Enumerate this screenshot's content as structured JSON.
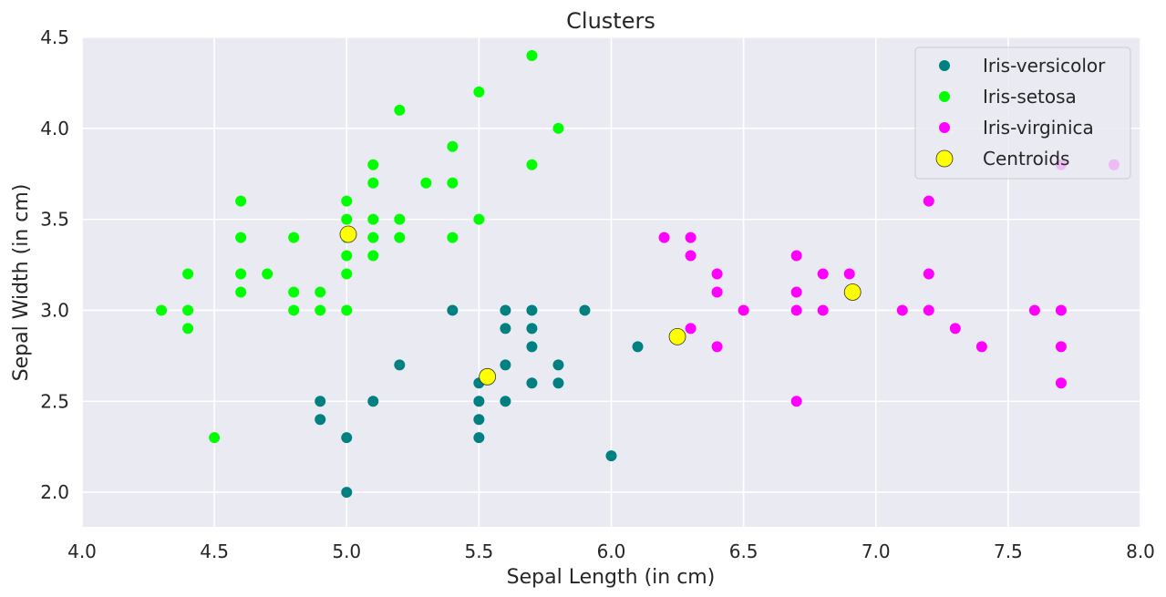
{
  "chart_data": {
    "type": "scatter",
    "title": "Clusters",
    "xlabel": "Sepal Length (in cm)",
    "ylabel": "Sepal Width (in cm)",
    "xlim": [
      4.0,
      8.0
    ],
    "ylim": [
      1.81,
      4.5
    ],
    "xticks": [
      4.0,
      4.5,
      5.0,
      5.5,
      6.0,
      6.5,
      7.0,
      7.5,
      8.0
    ],
    "yticks": [
      2.0,
      2.5,
      3.0,
      3.5,
      4.0,
      4.5
    ],
    "grid": true,
    "legend_position": "top-right",
    "colors": {
      "background": "#eaeaf2",
      "grid": "#ffffff",
      "versicolor": "#008080",
      "setosa": "#00ff00",
      "virginica": "#ff00ff",
      "centroid": "#ffff00"
    },
    "series": [
      {
        "name": "Iris-versicolor",
        "color": "#008080",
        "points": [
          [
            4.9,
            2.5
          ],
          [
            4.9,
            2.4
          ],
          [
            5.0,
            2.3
          ],
          [
            5.0,
            2.0
          ],
          [
            5.1,
            2.5
          ],
          [
            5.2,
            2.7
          ],
          [
            5.4,
            3.0
          ],
          [
            5.5,
            2.6
          ],
          [
            5.5,
            2.5
          ],
          [
            5.5,
            2.4
          ],
          [
            5.5,
            2.3
          ],
          [
            5.6,
            3.0
          ],
          [
            5.6,
            2.9
          ],
          [
            5.6,
            2.7
          ],
          [
            5.6,
            2.5
          ],
          [
            5.7,
            3.0
          ],
          [
            5.7,
            2.9
          ],
          [
            5.7,
            2.8
          ],
          [
            5.7,
            2.6
          ],
          [
            5.8,
            2.7
          ],
          [
            5.8,
            2.6
          ],
          [
            5.9,
            3.0
          ],
          [
            6.0,
            2.2
          ],
          [
            6.1,
            2.8
          ]
        ]
      },
      {
        "name": "Iris-setosa",
        "color": "#00ff00",
        "points": [
          [
            4.3,
            3.0
          ],
          [
            4.4,
            3.2
          ],
          [
            4.4,
            3.0
          ],
          [
            4.4,
            2.9
          ],
          [
            4.5,
            2.3
          ],
          [
            4.6,
            3.6
          ],
          [
            4.6,
            3.4
          ],
          [
            4.6,
            3.2
          ],
          [
            4.6,
            3.1
          ],
          [
            4.7,
            3.2
          ],
          [
            4.8,
            3.4
          ],
          [
            4.8,
            3.1
          ],
          [
            4.8,
            3.0
          ],
          [
            4.9,
            3.1
          ],
          [
            4.9,
            3.0
          ],
          [
            5.0,
            3.6
          ],
          [
            5.0,
            3.5
          ],
          [
            5.0,
            3.4
          ],
          [
            5.0,
            3.3
          ],
          [
            5.0,
            3.2
          ],
          [
            5.0,
            3.0
          ],
          [
            5.1,
            3.8
          ],
          [
            5.1,
            3.7
          ],
          [
            5.1,
            3.5
          ],
          [
            5.1,
            3.4
          ],
          [
            5.1,
            3.3
          ],
          [
            5.2,
            4.1
          ],
          [
            5.2,
            3.5
          ],
          [
            5.2,
            3.4
          ],
          [
            5.3,
            3.7
          ],
          [
            5.4,
            3.9
          ],
          [
            5.4,
            3.7
          ],
          [
            5.4,
            3.4
          ],
          [
            5.5,
            4.2
          ],
          [
            5.5,
            3.5
          ],
          [
            5.7,
            4.4
          ],
          [
            5.7,
            3.8
          ],
          [
            5.8,
            4.0
          ]
        ]
      },
      {
        "name": "Iris-virginica",
        "color": "#ff00ff",
        "points": [
          [
            6.2,
            3.4
          ],
          [
            6.3,
            3.4
          ],
          [
            6.3,
            3.3
          ],
          [
            6.3,
            2.9
          ],
          [
            6.4,
            3.2
          ],
          [
            6.4,
            3.1
          ],
          [
            6.4,
            2.8
          ],
          [
            6.5,
            3.0
          ],
          [
            6.7,
            3.3
          ],
          [
            6.7,
            3.1
          ],
          [
            6.7,
            3.0
          ],
          [
            6.7,
            2.5
          ],
          [
            6.8,
            3.2
          ],
          [
            6.8,
            3.0
          ],
          [
            6.9,
            3.2
          ],
          [
            7.1,
            3.0
          ],
          [
            7.2,
            3.6
          ],
          [
            7.2,
            3.2
          ],
          [
            7.2,
            3.0
          ],
          [
            7.3,
            2.9
          ],
          [
            7.4,
            2.8
          ],
          [
            7.6,
            3.0
          ],
          [
            7.7,
            3.8
          ],
          [
            7.7,
            3.0
          ],
          [
            7.7,
            2.8
          ],
          [
            7.7,
            2.6
          ],
          [
            7.9,
            3.8
          ]
        ]
      },
      {
        "name": "Centroids",
        "color": "#ffff00",
        "marker": "large-outlined",
        "points": [
          [
            5.006,
            3.418
          ],
          [
            5.532,
            2.635
          ],
          [
            6.25,
            2.855
          ],
          [
            6.912,
            3.1
          ]
        ]
      }
    ]
  }
}
